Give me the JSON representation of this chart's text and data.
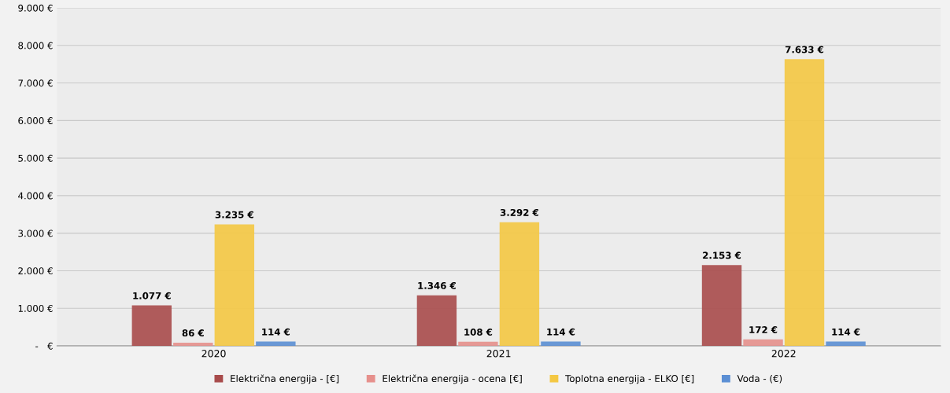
{
  "chart_data": {
    "type": "bar",
    "categories": [
      "2020",
      "2021",
      "2022"
    ],
    "series": [
      {
        "name": "Električna energija - [€]",
        "color": "#a84b4b",
        "values": [
          1077,
          1346,
          2153
        ],
        "value_labels": [
          "1.077 €",
          "1.346 €",
          "2.153 €"
        ]
      },
      {
        "name": "Električna energija - ocena [€]",
        "color": "#e6908c",
        "values": [
          86,
          108,
          172
        ],
        "value_labels": [
          "86 €",
          "108 €",
          "172 €"
        ]
      },
      {
        "name": "Toplotna energija - ELKO [€]",
        "color": "#f4c843",
        "values": [
          3235,
          3292,
          7633
        ],
        "value_labels": [
          "3.235 €",
          "3.292 €",
          "7.633 €"
        ]
      },
      {
        "name": "Voda - (€)",
        "color": "#5b8fd4",
        "values": [
          114,
          114,
          114
        ],
        "value_labels": [
          "114 €",
          "114 €",
          "114 €"
        ]
      }
    ],
    "ylim": [
      0,
      9000
    ],
    "yticks": [
      {
        "value": 0,
        "label": "-   €"
      },
      {
        "value": 1000,
        "label": "1.000 €"
      },
      {
        "value": 2000,
        "label": "2.000 €"
      },
      {
        "value": 3000,
        "label": "3.000 €"
      },
      {
        "value": 4000,
        "label": "4.000 €"
      },
      {
        "value": 5000,
        "label": "5.000 €"
      },
      {
        "value": 6000,
        "label": "6.000 €"
      },
      {
        "value": 7000,
        "label": "7.000 €"
      },
      {
        "value": 8000,
        "label": "8.000 €"
      },
      {
        "value": 9000,
        "label": "9.000 €"
      }
    ],
    "grid": "y",
    "legend": "bottom"
  }
}
